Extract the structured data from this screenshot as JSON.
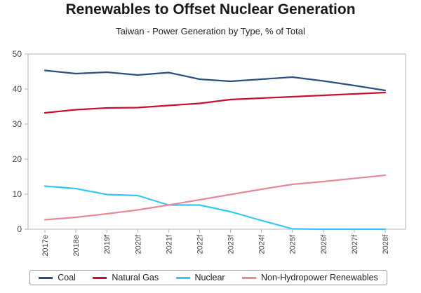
{
  "chart_data": {
    "type": "line",
    "title": "Renewables to Offset Nuclear Generation",
    "subtitle": "Taiwan - Power Generation by Type, % of Total",
    "xlabel": "",
    "ylabel": "",
    "ylim": [
      0,
      50
    ],
    "yticks": [
      "0",
      "10",
      "20",
      "30",
      "40",
      "50"
    ],
    "grid": false,
    "legend_position": "bottom",
    "categories": [
      "2017e",
      "2018e",
      "2019f",
      "2020f",
      "2021f",
      "2022f",
      "2023f",
      "2024f",
      "2025f",
      "2026f",
      "2027f",
      "2028f"
    ],
    "series": [
      {
        "name": "Coal",
        "color": "#2b4f81",
        "values": [
          45.3,
          44.4,
          44.8,
          44.0,
          44.7,
          42.8,
          42.2,
          42.8,
          43.4,
          42.3,
          41.0,
          39.6
        ]
      },
      {
        "name": "Natural Gas",
        "color": "#c8102e",
        "values": [
          33.2,
          34.1,
          34.6,
          34.7,
          35.3,
          35.9,
          37.0,
          37.4,
          37.8,
          38.2,
          38.6,
          39.0
        ]
      },
      {
        "name": "Nuclear",
        "color": "#33c8f2",
        "values": [
          12.3,
          11.6,
          9.9,
          9.6,
          6.9,
          6.9,
          5.0,
          2.5,
          0.1,
          0.0,
          0.0,
          0.0
        ]
      },
      {
        "name": "Non-Hydropower Renewables",
        "color": "#e8899a",
        "values": [
          2.7,
          3.4,
          4.4,
          5.5,
          6.9,
          8.4,
          9.9,
          11.4,
          12.8,
          13.6,
          14.5,
          15.4
        ]
      }
    ]
  }
}
